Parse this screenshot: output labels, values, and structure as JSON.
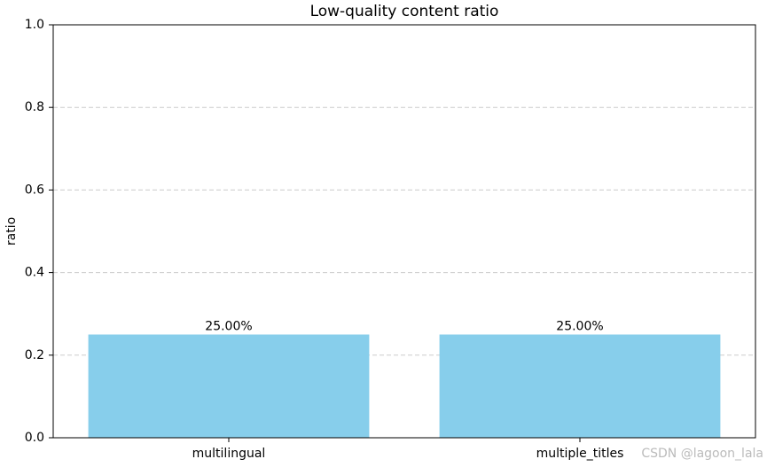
{
  "chart_data": {
    "type": "bar",
    "title": "Low-quality content ratio",
    "ylabel": "ratio",
    "categories": [
      "multilingual",
      "multiple_titles"
    ],
    "values": [
      0.25,
      0.25
    ],
    "value_labels": [
      "25.00%",
      "25.00%"
    ],
    "color": "#87ceeb",
    "ylim": [
      0,
      1
    ],
    "yticks": [
      {
        "value": 0,
        "label": "0.0"
      },
      0.2,
      0.4,
      0.6,
      0.8,
      {
        "value": 1,
        "label": "1.0"
      }
    ],
    "grid": true,
    "watermark": "CSDN @lagoon_lala"
  }
}
